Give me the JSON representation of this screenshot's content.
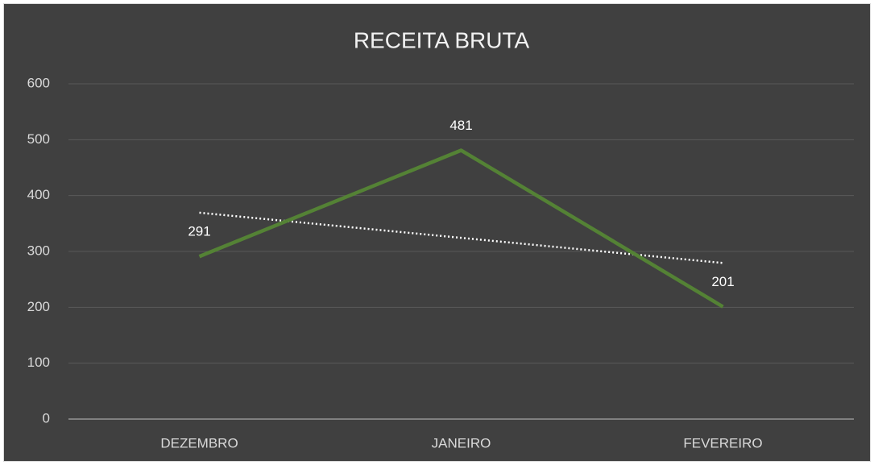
{
  "chart_data": {
    "type": "line",
    "title": "RECEITA BRUTA",
    "categories": [
      "DEZEMBRO",
      "JANEIRO",
      "FEVEREIRO"
    ],
    "series": [
      {
        "color": "#548235",
        "values": [
          291,
          481,
          201
        ]
      }
    ],
    "ylim": [
      0,
      600
    ],
    "yticks": [
      0,
      100,
      200,
      300,
      400,
      500,
      600
    ],
    "grid": true,
    "data_labels": true,
    "trendline": true,
    "trendline_color": "#ffffff"
  }
}
